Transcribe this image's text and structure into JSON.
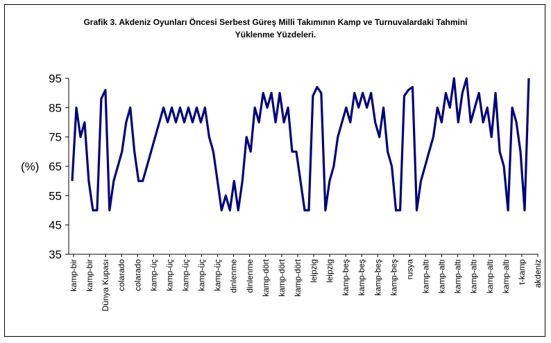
{
  "chart_data": {
    "type": "line",
    "title_line1": "Grafik 3. Akdeniz Oyunları Öncesi Serbest Güreş Milli Takımının Kamp ve Turnuvalardaki Tahmini",
    "title_line2": "Yüklenme Yüzdeleri.",
    "ylabel": "(%)",
    "ylim": [
      35,
      95
    ],
    "yticks": [
      35,
      45,
      55,
      65,
      75,
      85,
      95
    ],
    "grid": false,
    "legend": "none",
    "line_color": "#00007f",
    "category_labels": [
      "kamp-bir",
      "kamp-bir",
      "Dünya Kupası",
      "colarado",
      "colarado",
      "kamp-üç",
      "kamp-üç",
      "kamp-üç",
      "kamp-üç",
      "kamp-üç",
      "dinlenme",
      "dinlenme",
      "kamp-dört",
      "kamp-dört",
      "kamp-dört",
      "leipzig",
      "leipzig",
      "kamp-beş",
      "kamp-beş",
      "kamp-beş",
      "kamp-beş",
      "rusya",
      "kamp-altı",
      "kamp-altı",
      "kamp-altı",
      "kamp-altı",
      "kamp-altı",
      "kamp-altı",
      "t-kamp",
      "akdeniz"
    ],
    "values": [
      60,
      85,
      75,
      80,
      60,
      50,
      50,
      88,
      91,
      50,
      60,
      65,
      70,
      80,
      85,
      70,
      60,
      60,
      65,
      70,
      75,
      80,
      85,
      80,
      85,
      80,
      85,
      80,
      85,
      80,
      85,
      80,
      85,
      75,
      70,
      60,
      50,
      55,
      50,
      60,
      50,
      60,
      75,
      70,
      85,
      80,
      90,
      85,
      90,
      80,
      90,
      80,
      85,
      70,
      70,
      60,
      50,
      50,
      89,
      92,
      90,
      50,
      60,
      65,
      75,
      80,
      85,
      80,
      90,
      85,
      90,
      85,
      90,
      80,
      75,
      85,
      70,
      65,
      50,
      50,
      89,
      91,
      92,
      50,
      60,
      65,
      70,
      75,
      85,
      80,
      90,
      85,
      95,
      80,
      90,
      95,
      80,
      85,
      90,
      80,
      85,
      75,
      90,
      70,
      65,
      50,
      85,
      80,
      70,
      50,
      95
    ]
  }
}
